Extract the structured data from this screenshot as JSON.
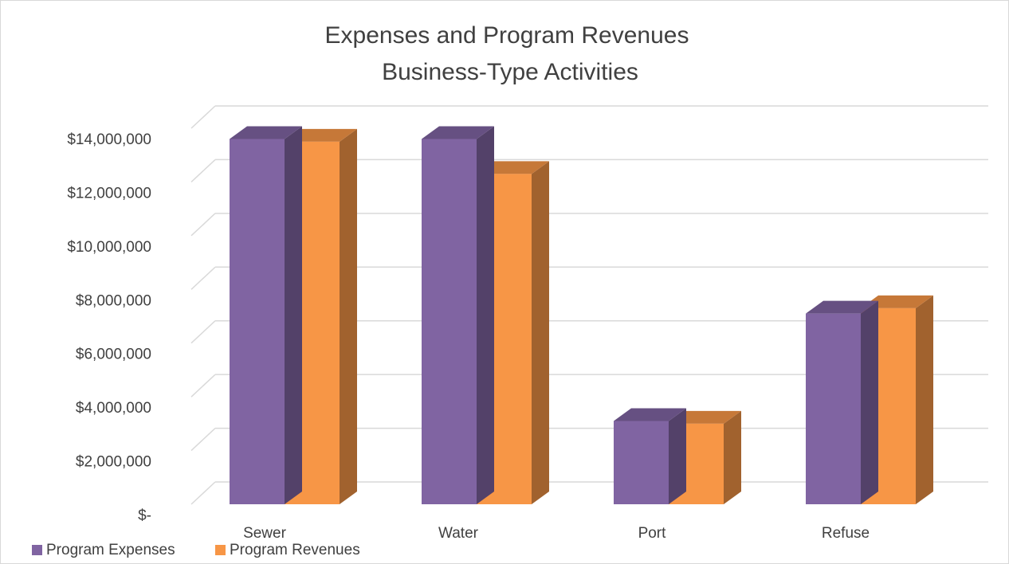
{
  "chart_data": {
    "type": "bar3d",
    "title": "Expenses and Program Revenues",
    "subtitle": "Business-Type Activities",
    "categories": [
      "Sewer",
      "Water",
      "Port",
      "Refuse"
    ],
    "series": [
      {
        "name": "Program Expenses",
        "color": "#8064a2",
        "values": [
          13600000,
          13600000,
          3100000,
          7100000
        ]
      },
      {
        "name": "Program Revenues",
        "color": "#f79646",
        "values": [
          13500000,
          12300000,
          3000000,
          7300000
        ]
      }
    ],
    "ylim": [
      0,
      14000000
    ],
    "yticks": [
      {
        "value": 0,
        "label": "$-"
      },
      {
        "value": 2000000,
        "label": "$2,000,000"
      },
      {
        "value": 4000000,
        "label": "$4,000,000"
      },
      {
        "value": 6000000,
        "label": "$6,000,000"
      },
      {
        "value": 8000000,
        "label": "$8,000,000"
      },
      {
        "value": 10000000,
        "label": "$10,000,000"
      },
      {
        "value": 12000000,
        "label": "$12,000,000"
      },
      {
        "value": 14000000,
        "label": "$14,000,000"
      }
    ],
    "grid": true,
    "legend": "bottom-left"
  }
}
